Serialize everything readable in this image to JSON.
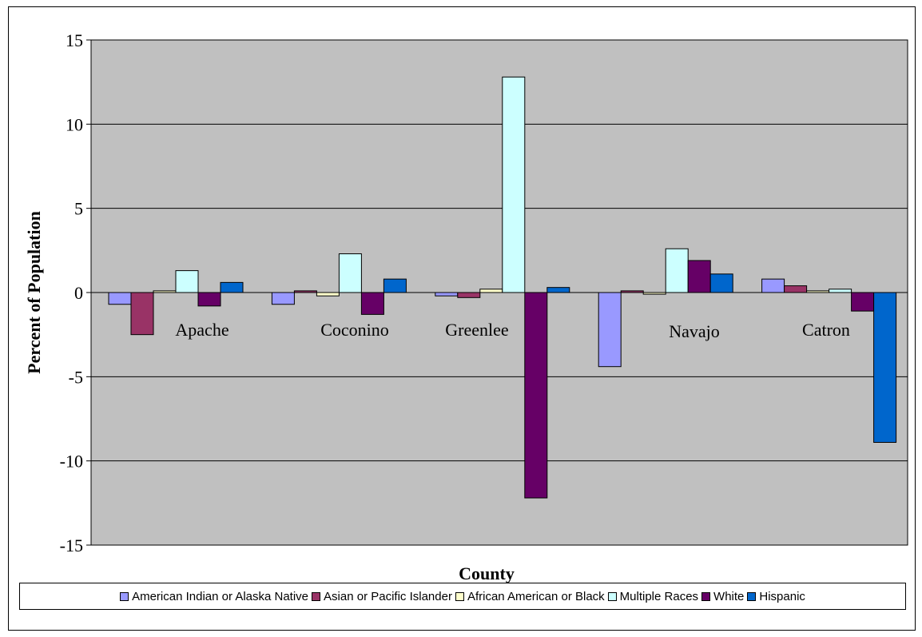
{
  "chart_data": {
    "type": "bar",
    "title": "",
    "xlabel": "County",
    "ylabel": "Percent of Population",
    "ylim": [
      -15,
      15
    ],
    "yticks": [
      15,
      10,
      5,
      0,
      -5,
      -10,
      -15
    ],
    "ytick_labels": [
      "15",
      "10",
      "5",
      "0",
      "-5",
      "-10",
      "-15"
    ],
    "grid": true,
    "legend_position": "bottom",
    "categories": [
      "Apache",
      "Coconino",
      "Greenlee",
      "Navajo",
      "Catron"
    ],
    "series": [
      {
        "name": "American Indian or Alaska Native",
        "color": "#9999ff",
        "values": [
          -0.7,
          -0.7,
          -0.2,
          -4.4,
          0.8
        ]
      },
      {
        "name": "Asian or Pacific Islander",
        "color": "#993366",
        "values": [
          -2.5,
          0.1,
          -0.3,
          0.1,
          0.4
        ]
      },
      {
        "name": "African American or Black",
        "color": "#ffffcc",
        "values": [
          0.1,
          -0.2,
          0.2,
          -0.1,
          0.1
        ]
      },
      {
        "name": "Multiple Races",
        "color": "#ccffff",
        "values": [
          1.3,
          2.3,
          12.8,
          2.6,
          0.2
        ]
      },
      {
        "name": "White",
        "color": "#660066",
        "values": [
          -0.8,
          -1.3,
          -12.2,
          1.9,
          -1.1
        ]
      },
      {
        "name": "Hispanic",
        "color": "#0066cc",
        "values": [
          0.6,
          0.8,
          0.3,
          1.1,
          -8.9
        ]
      }
    ]
  }
}
